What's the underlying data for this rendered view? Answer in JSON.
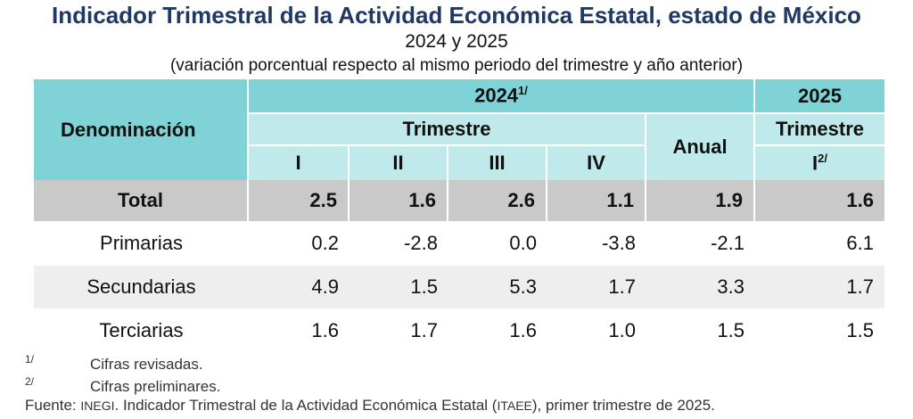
{
  "title": "Indicador Trimestral de la Actividad Económica Estatal, estado de México",
  "subtitle": "2024 y 2025",
  "note": "(variación porcentual respecto al mismo periodo del trimestre y año anterior)",
  "table": {
    "header": {
      "denominacion": "Denominación",
      "year_2024": "2024",
      "year_2024_sup": "1/",
      "year_2025": "2025",
      "trimestre": "Trimestre",
      "anual": "Anual",
      "trimestre_2025": "Trimestre",
      "q1": "I",
      "q2": "II",
      "q3": "III",
      "q4": "IV",
      "q1_2025": "I",
      "q1_2025_sup": "2/"
    },
    "rows": [
      {
        "label": "Total",
        "values": [
          "2.5",
          "1.6",
          "2.6",
          "1.1",
          "1.9",
          "1.6"
        ]
      },
      {
        "label": "Primarias",
        "values": [
          "0.2",
          "-2.8",
          "0.0",
          "-3.8",
          "-2.1",
          "6.1"
        ]
      },
      {
        "label": "Secundarias",
        "values": [
          "4.9",
          "1.5",
          "5.3",
          "1.7",
          "3.3",
          "1.7"
        ]
      },
      {
        "label": "Terciarias",
        "values": [
          "1.6",
          "1.7",
          "1.6",
          "1.0",
          "1.5",
          "1.5"
        ]
      }
    ]
  },
  "footnotes": [
    {
      "mark": "1/",
      "text": "Cifras revisadas."
    },
    {
      "mark": "2/",
      "text": "Cifras preliminares."
    }
  ],
  "source": {
    "prefix": "Fuente: ",
    "org": "INEGI",
    "middle": ". Indicador Trimestral de la Actividad Económica Estatal (",
    "abbr": "ITAEE",
    "suffix": "), primer trimestre de 2025."
  }
}
